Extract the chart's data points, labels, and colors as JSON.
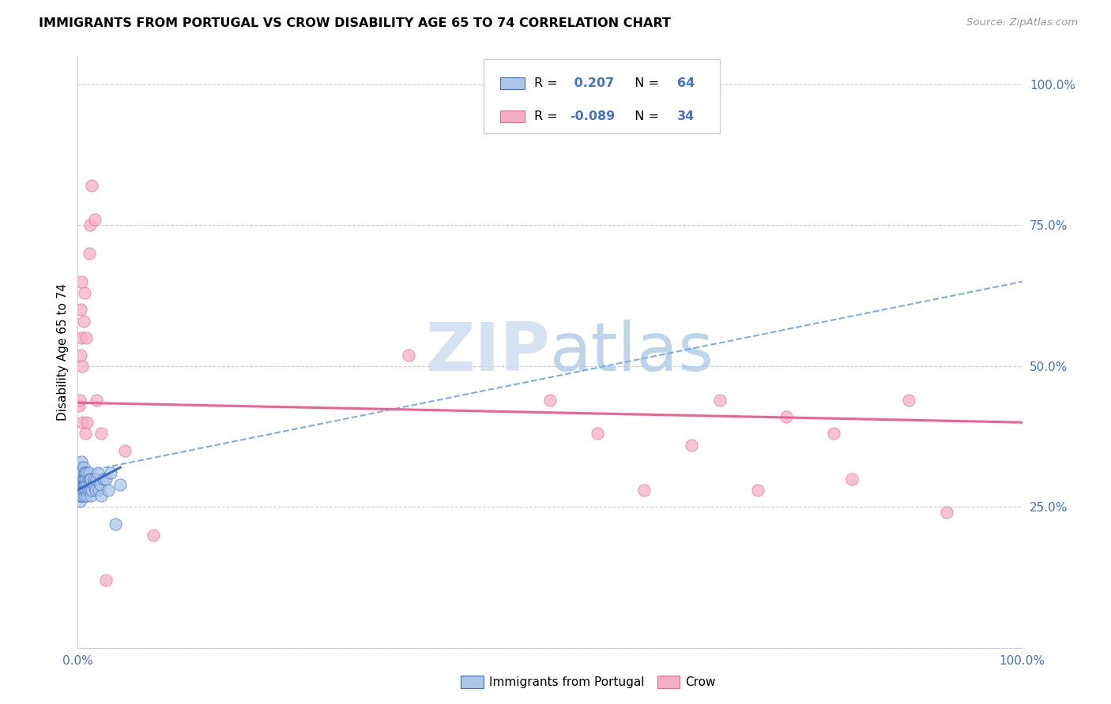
{
  "title": "IMMIGRANTS FROM PORTUGAL VS CROW DISABILITY AGE 65 TO 74 CORRELATION CHART",
  "source": "Source: ZipAtlas.com",
  "ylabel": "Disability Age 65 to 74",
  "legend_label1": "Immigrants from Portugal",
  "legend_label2": "Crow",
  "R1": 0.207,
  "N1": 64,
  "R2": -0.089,
  "N2": 34,
  "color_blue": "#adc6e8",
  "color_pink": "#f4afc6",
  "trendline_blue": "#3a6fc4",
  "trendline_pink": "#f06090",
  "dashed_color": "#7aaee8",
  "watermark_color": "#d0dff0",
  "blue_scatter_x": [
    0.001,
    0.001,
    0.001,
    0.002,
    0.002,
    0.002,
    0.002,
    0.002,
    0.003,
    0.003,
    0.003,
    0.003,
    0.003,
    0.004,
    0.004,
    0.004,
    0.004,
    0.004,
    0.004,
    0.005,
    0.005,
    0.005,
    0.005,
    0.005,
    0.006,
    0.006,
    0.006,
    0.006,
    0.007,
    0.007,
    0.007,
    0.007,
    0.008,
    0.008,
    0.008,
    0.009,
    0.009,
    0.01,
    0.01,
    0.01,
    0.011,
    0.011,
    0.012,
    0.012,
    0.013,
    0.013,
    0.014,
    0.014,
    0.015,
    0.016,
    0.017,
    0.018,
    0.019,
    0.02,
    0.021,
    0.022,
    0.024,
    0.025,
    0.027,
    0.03,
    0.032,
    0.035,
    0.04,
    0.045
  ],
  "blue_scatter_y": [
    0.29,
    0.31,
    0.27,
    0.29,
    0.3,
    0.28,
    0.32,
    0.26,
    0.29,
    0.3,
    0.28,
    0.31,
    0.27,
    0.29,
    0.3,
    0.32,
    0.27,
    0.28,
    0.33,
    0.3,
    0.28,
    0.31,
    0.27,
    0.29,
    0.29,
    0.3,
    0.32,
    0.28,
    0.29,
    0.31,
    0.27,
    0.3,
    0.29,
    0.31,
    0.28,
    0.3,
    0.28,
    0.29,
    0.31,
    0.27,
    0.3,
    0.28,
    0.29,
    0.31,
    0.3,
    0.28,
    0.27,
    0.3,
    0.28,
    0.29,
    0.3,
    0.29,
    0.28,
    0.3,
    0.31,
    0.28,
    0.29,
    0.27,
    0.3,
    0.3,
    0.28,
    0.31,
    0.22,
    0.29
  ],
  "pink_scatter_x": [
    0.001,
    0.002,
    0.003,
    0.003,
    0.004,
    0.004,
    0.005,
    0.005,
    0.006,
    0.007,
    0.008,
    0.009,
    0.01,
    0.012,
    0.013,
    0.015,
    0.018,
    0.02,
    0.025,
    0.03,
    0.05,
    0.08,
    0.35,
    0.5,
    0.55,
    0.6,
    0.65,
    0.68,
    0.72,
    0.75,
    0.8,
    0.82,
    0.88,
    0.92
  ],
  "pink_scatter_y": [
    0.43,
    0.44,
    0.52,
    0.6,
    0.55,
    0.65,
    0.4,
    0.5,
    0.58,
    0.63,
    0.38,
    0.55,
    0.4,
    0.7,
    0.75,
    0.82,
    0.76,
    0.44,
    0.38,
    0.12,
    0.35,
    0.2,
    0.52,
    0.44,
    0.38,
    0.28,
    0.36,
    0.44,
    0.28,
    0.41,
    0.38,
    0.3,
    0.44,
    0.24
  ],
  "blue_line_x": [
    0.0,
    0.045
  ],
  "blue_line_y_start": 0.28,
  "blue_line_y_end": 0.32,
  "pink_line_x": [
    0.0,
    1.0
  ],
  "pink_line_y_start": 0.435,
  "pink_line_y_end": 0.4,
  "dash_line_x": [
    0.0,
    1.0
  ],
  "dash_line_y_start": 0.31,
  "dash_line_y_end": 0.65,
  "xlim": [
    0.0,
    1.0
  ],
  "ylim": [
    0.0,
    1.05
  ],
  "xticks": [
    0.0,
    0.25,
    0.5,
    0.75,
    1.0
  ],
  "xticklabels": [
    "0.0%",
    "",
    "",
    "",
    "100.0%"
  ],
  "yticks": [
    0.0,
    0.25,
    0.5,
    0.75,
    1.0
  ],
  "yticklabels": [
    "",
    "25.0%",
    "50.0%",
    "75.0%",
    "100.0%"
  ]
}
